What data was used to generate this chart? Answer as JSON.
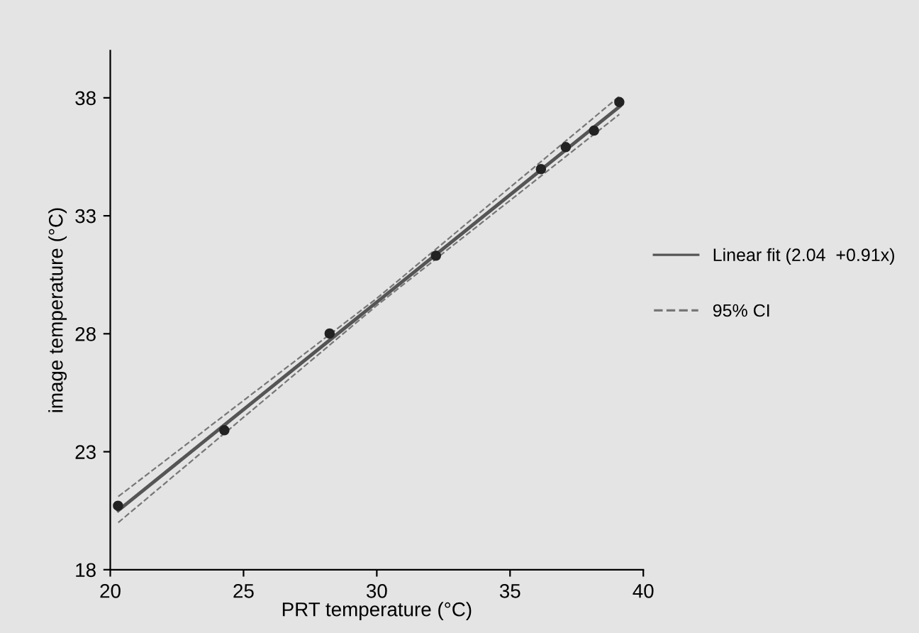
{
  "chart_data": {
    "type": "line",
    "xlabel": "PRT temperature (°C)",
    "ylabel": "image temperature (°C)",
    "xlim": [
      20,
      40
    ],
    "xticks": [
      20,
      25,
      30,
      35,
      40
    ],
    "ylim": [
      18,
      40
    ],
    "yticks": [
      18,
      23,
      28,
      33,
      38
    ],
    "grid": false,
    "legend": "right",
    "series": [
      {
        "type": "scatter",
        "color": "#222222",
        "marker": "circle",
        "x": [
          20.29,
          24.28,
          28.23,
          32.22,
          36.16,
          37.09,
          38.15,
          39.1
        ],
        "values": [
          20.71,
          23.91,
          28.01,
          31.31,
          34.98,
          35.91,
          36.61,
          37.82
        ]
      },
      {
        "name": "Linear fit (2.04  +0.91x)",
        "color": "#555555",
        "line_style": "solid",
        "x": [
          20.3,
          39.1
        ],
        "values": [
          20.51,
          37.62
        ]
      },
      {
        "name": "95% CI",
        "color": "#777777",
        "line_style": "dashed",
        "x": [
          20.3,
          30,
          39.1
        ],
        "values": [
          21.1,
          29.5,
          38.06
        ]
      },
      {
        "color": "#777777",
        "line_style": "dashed",
        "x": [
          20.3,
          30,
          39.1
        ],
        "values": [
          20.0,
          29.2,
          37.3
        ]
      }
    ]
  }
}
